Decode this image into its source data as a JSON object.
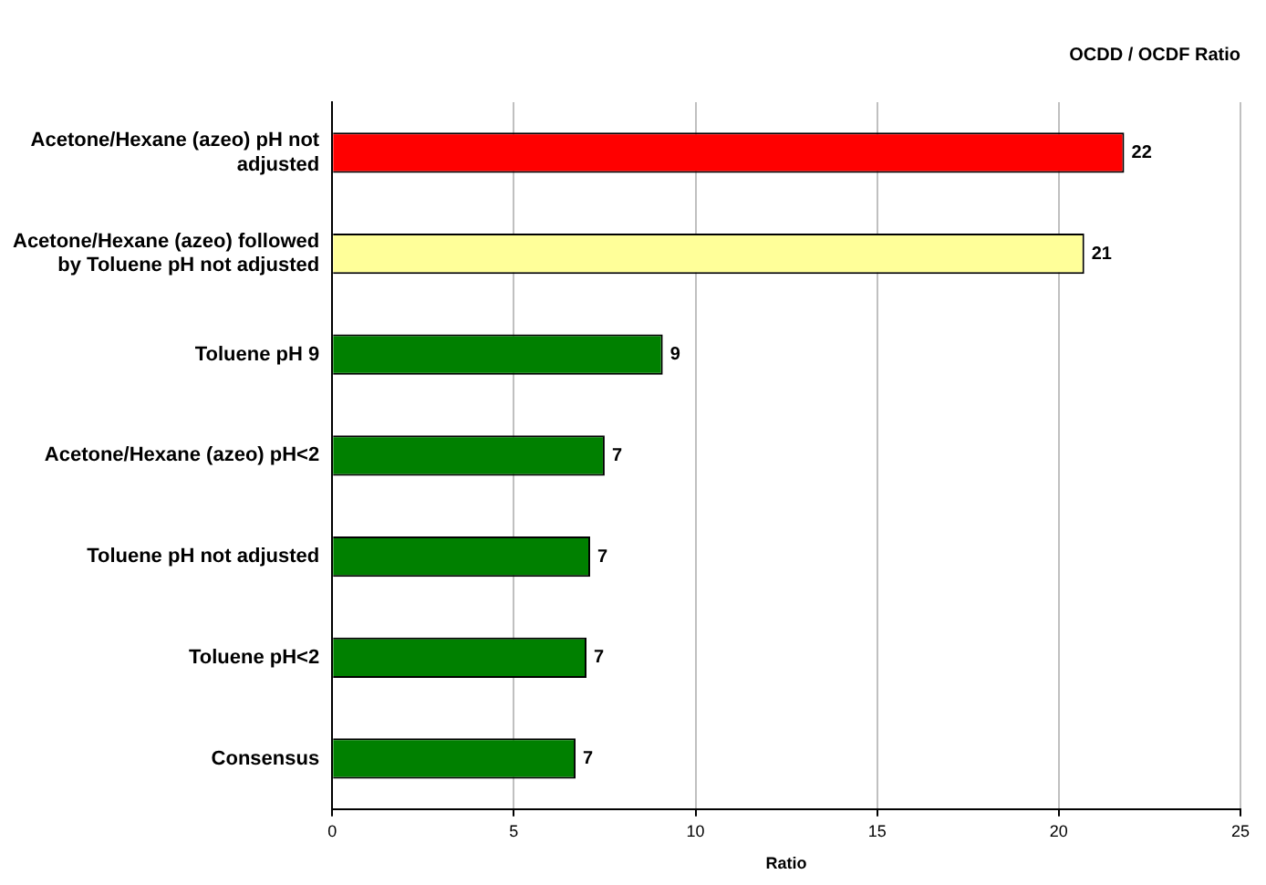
{
  "chart_data": {
    "type": "bar",
    "orientation": "horizontal",
    "title": "OCDD / OCDF Ratio",
    "xlabel": "Ratio",
    "categories": [
      "Acetone/Hexane (azeo) pH not adjusted",
      "Acetone/Hexane (azeo) followed by Toluene pH not adjusted",
      "Toluene pH 9",
      "Acetone/Hexane (azeo) pH<2",
      "Toluene pH not adjusted",
      "Toluene pH<2",
      "Consensus"
    ],
    "values": [
      21.8,
      20.7,
      9.1,
      7.5,
      7.1,
      7.0,
      6.7
    ],
    "colors": [
      "#ff0000",
      "#ffff99",
      "#008000",
      "#008000",
      "#008000",
      "#008000",
      "#008000"
    ],
    "value_labels": [
      "22",
      "21",
      "9",
      "7",
      "7",
      "7",
      "7"
    ],
    "xlim": [
      0,
      25
    ],
    "xticks": [
      0,
      5,
      10,
      15,
      20,
      25
    ],
    "grid": "x",
    "legend": false
  }
}
